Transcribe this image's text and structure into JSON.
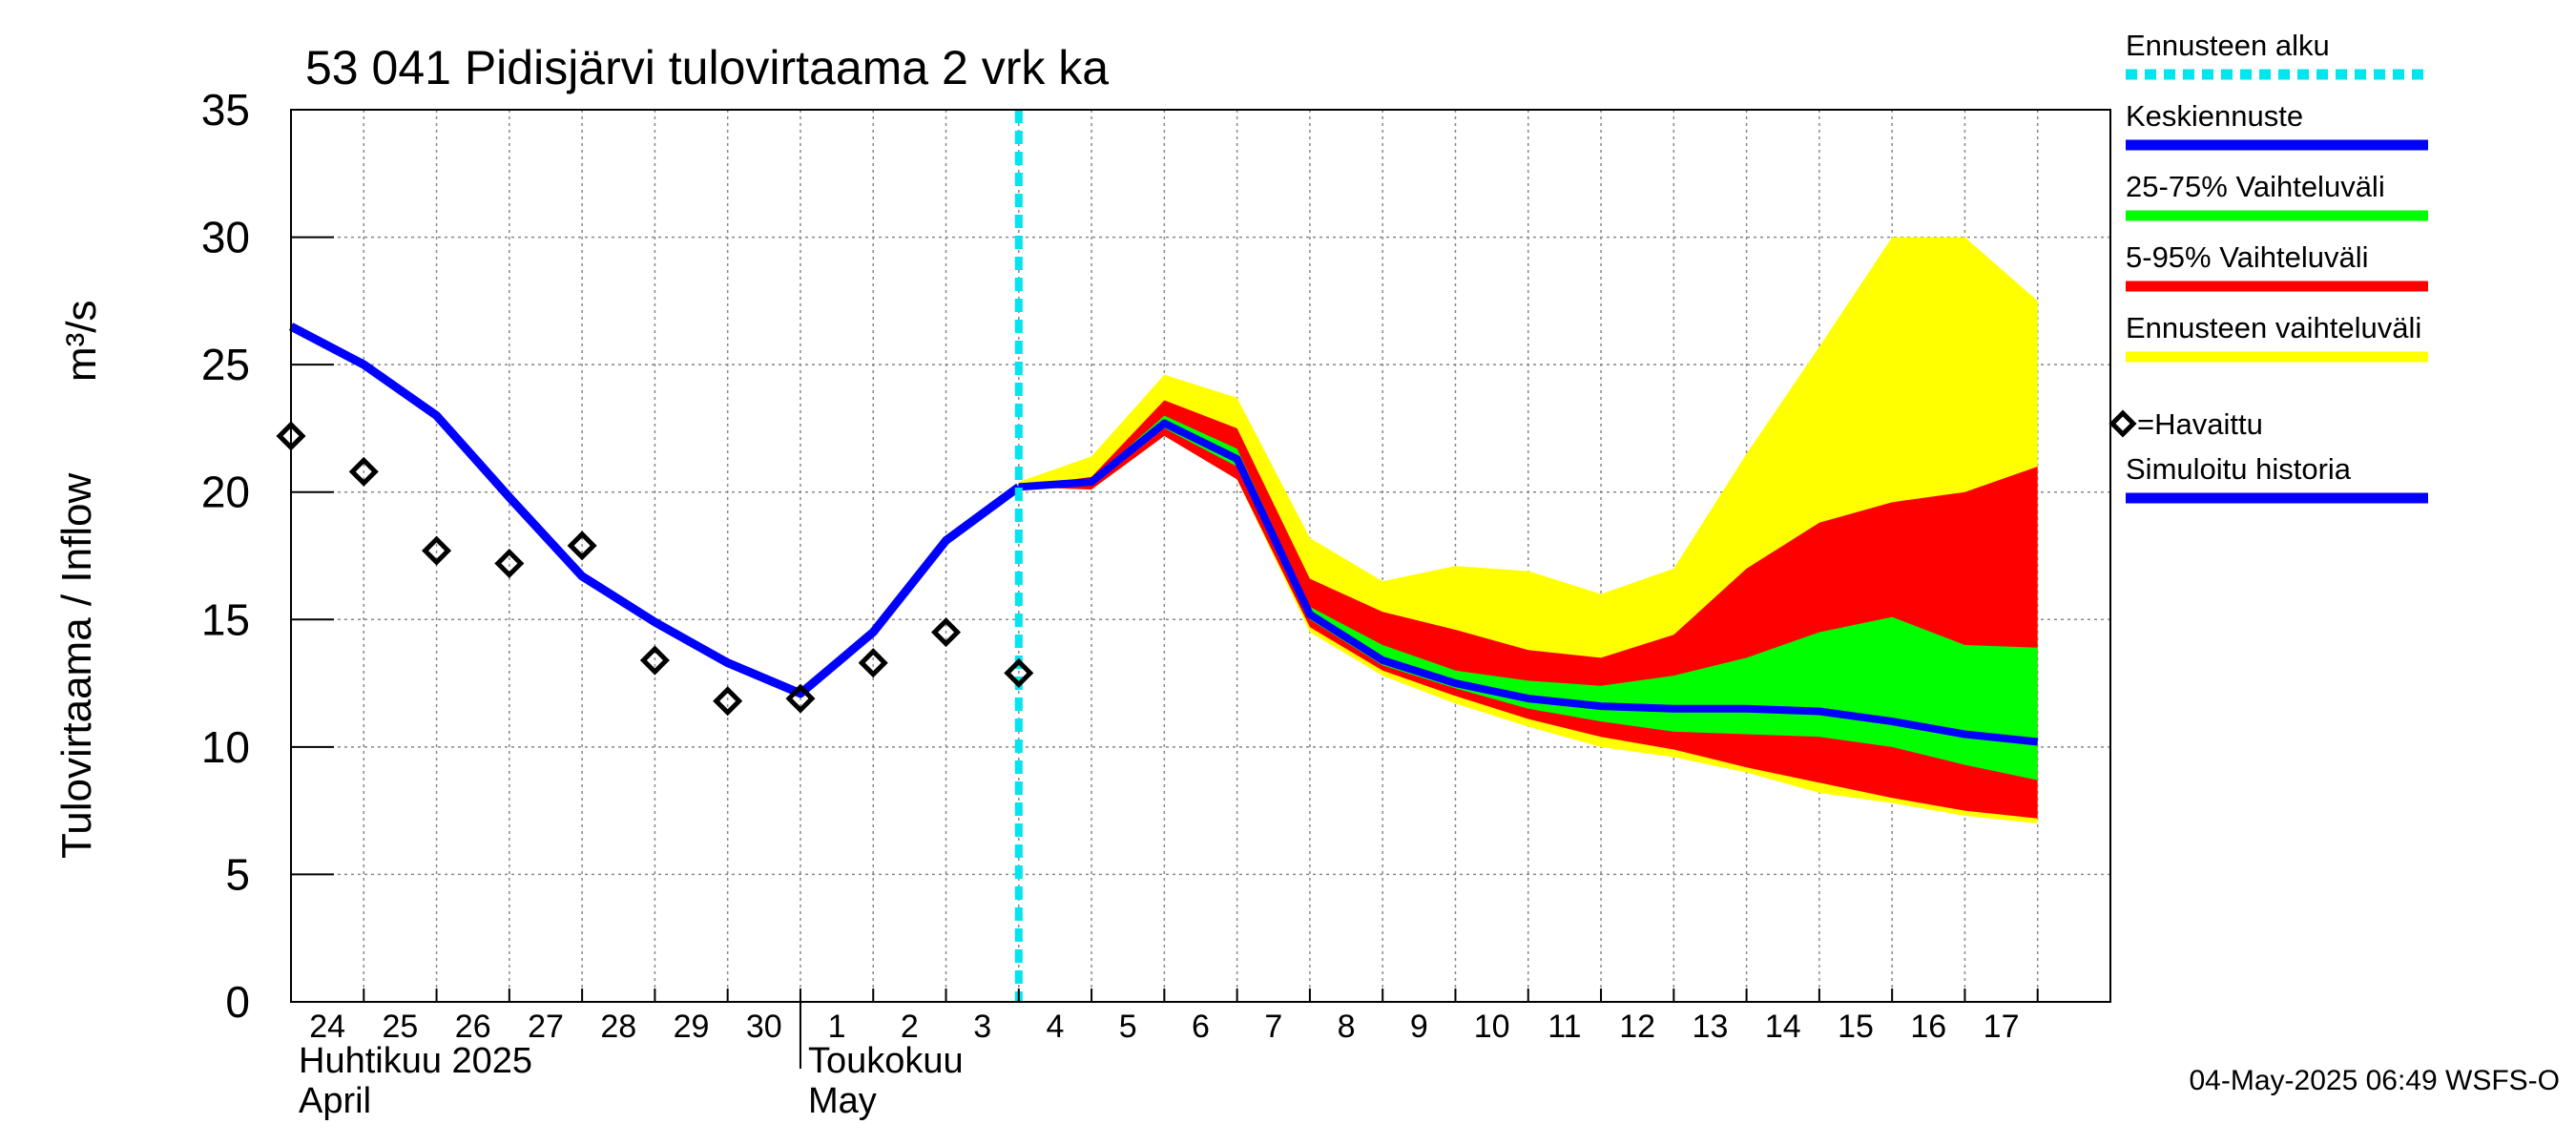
{
  "chart_data": {
    "type": "line",
    "title": "53 041 Pidisjärvi tulovirtaama 2 vrk ka",
    "ylabel": "Tulovirtaama / Inflow",
    "yunit": "m³/s",
    "ylim": [
      0,
      35
    ],
    "yticks": [
      "0",
      "5",
      "10",
      "15",
      "20",
      "25",
      "30",
      "35"
    ],
    "x_start": "2025-04-24",
    "x_days": 25,
    "xticks": [
      "24",
      "25",
      "26",
      "27",
      "28",
      "29",
      "30",
      "1",
      "2",
      "3",
      "4",
      "5",
      "6",
      "7",
      "8",
      "9",
      "10",
      "11",
      "12",
      "13",
      "14",
      "15",
      "16",
      "17"
    ],
    "month_labels": [
      {
        "fi": "Huhtikuu  2025",
        "en": "April"
      },
      {
        "fi": "Toukokuu",
        "en": "May"
      }
    ],
    "grid": true,
    "forecast_start_day": 10,
    "history": {
      "days": [
        0,
        1,
        2,
        3,
        4,
        5,
        6,
        7,
        8,
        9,
        10
      ],
      "values": [
        26.5,
        25.0,
        23.0,
        19.8,
        16.7,
        14.9,
        13.3,
        12.1,
        14.5,
        18.1,
        20.2
      ]
    },
    "observed": {
      "days": [
        0,
        1,
        2,
        3,
        4,
        5,
        6,
        7,
        8,
        9,
        10
      ],
      "values": [
        22.2,
        20.8,
        17.7,
        17.2,
        17.9,
        13.4,
        11.8,
        11.9,
        13.3,
        14.5,
        12.9
      ]
    },
    "forecast": {
      "days": [
        10,
        11,
        12,
        13,
        14,
        15,
        16,
        17,
        18,
        19,
        20,
        21,
        22,
        23,
        24
      ],
      "min": [
        20.2,
        20.1,
        22.2,
        20.5,
        14.5,
        12.8,
        11.7,
        10.8,
        10.0,
        9.6,
        9.0,
        8.2,
        7.8,
        7.3,
        7.0
      ],
      "p5": [
        20.2,
        20.1,
        22.2,
        20.5,
        14.7,
        13.0,
        12.0,
        11.1,
        10.4,
        9.9,
        9.2,
        8.6,
        8.0,
        7.5,
        7.2
      ],
      "p25": [
        20.2,
        20.3,
        22.5,
        21.0,
        15.0,
        13.2,
        12.3,
        11.5,
        11.0,
        10.6,
        10.5,
        10.4,
        10.0,
        9.3,
        8.7
      ],
      "median": [
        20.2,
        20.4,
        22.7,
        21.3,
        15.2,
        13.4,
        12.5,
        11.9,
        11.6,
        11.5,
        11.5,
        11.4,
        11.0,
        10.5,
        10.2
      ],
      "p75": [
        20.2,
        20.5,
        23.0,
        21.7,
        15.5,
        14.0,
        13.0,
        12.6,
        12.4,
        12.8,
        13.5,
        14.5,
        15.1,
        14.0,
        13.9
      ],
      "p95": [
        20.2,
        20.6,
        23.6,
        22.5,
        16.6,
        15.3,
        14.6,
        13.8,
        13.5,
        14.4,
        17.0,
        18.8,
        19.6,
        20.0,
        21.0
      ],
      "max": [
        20.4,
        21.4,
        24.6,
        23.7,
        18.2,
        16.5,
        17.1,
        16.9,
        16.0,
        17.0,
        21.5,
        25.7,
        30.0,
        30.0,
        27.5
      ]
    },
    "colors": {
      "forecast_start": "#00e5ee",
      "median": "#0000ff",
      "p25_75": "#00ff00",
      "p5_95": "#ff0000",
      "range": "#ffff00",
      "history": "#0000ff"
    },
    "legend": [
      {
        "label": "Ennusteen alku",
        "type": "dashed",
        "color": "#00e5ee"
      },
      {
        "label": "Keskiennuste",
        "type": "line",
        "color": "#0000ff"
      },
      {
        "label": "25-75% Vaihteluväli",
        "type": "line",
        "color": "#00ff00"
      },
      {
        "label": "5-95% Vaihteluväli",
        "type": "line",
        "color": "#ff0000"
      },
      {
        "label": "Ennusteen vaihteluväli",
        "type": "line",
        "color": "#ffff00"
      },
      {
        "label": "=Havaittu",
        "type": "marker",
        "color": "#000000"
      },
      {
        "label": "Simuloitu historia",
        "type": "line",
        "color": "#0000ff"
      }
    ],
    "legend_position": "right",
    "timestamp": "04-May-2025 06:49 WSFS-O"
  }
}
